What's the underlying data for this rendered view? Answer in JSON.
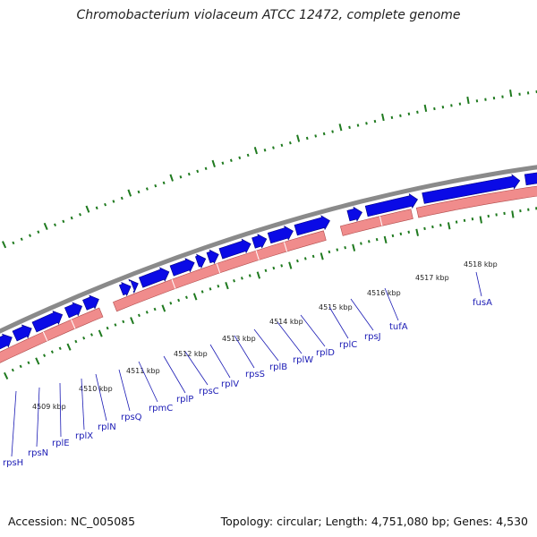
{
  "title": "Chromobacterium violaceum ATCC 12472, complete genome",
  "footer": {
    "accession": "Accession: NC_005085",
    "topology": "Topology: circular; Length: 4,751,080 bp; Genes: 4,530"
  },
  "colors": {
    "backbone": "#8a8a8a",
    "forward_cds": "#0a0ae6",
    "reverse_rna": "#f08c8c",
    "gc_ticks": "#1f7a1f",
    "label": "#1b1bb5",
    "leader": "#1b1bb5"
  },
  "kbp_labels": [
    "4509 kbp",
    "4510 kbp",
    "4511 kbp",
    "4512 kbp",
    "4513 kbp",
    "4514 kbp",
    "4515 kbp",
    "4516 kbp",
    "4517 kbp",
    "4518 kbp"
  ],
  "genes": [
    "rpsH",
    "rpsN",
    "rplE",
    "rplX",
    "rplN",
    "rpsQ",
    "rpmC",
    "rplP",
    "rpsC",
    "rplV",
    "rpsS",
    "rplB",
    "rplW",
    "rplD",
    "rplC",
    "rpsJ",
    "tufA",
    "fusA"
  ]
}
